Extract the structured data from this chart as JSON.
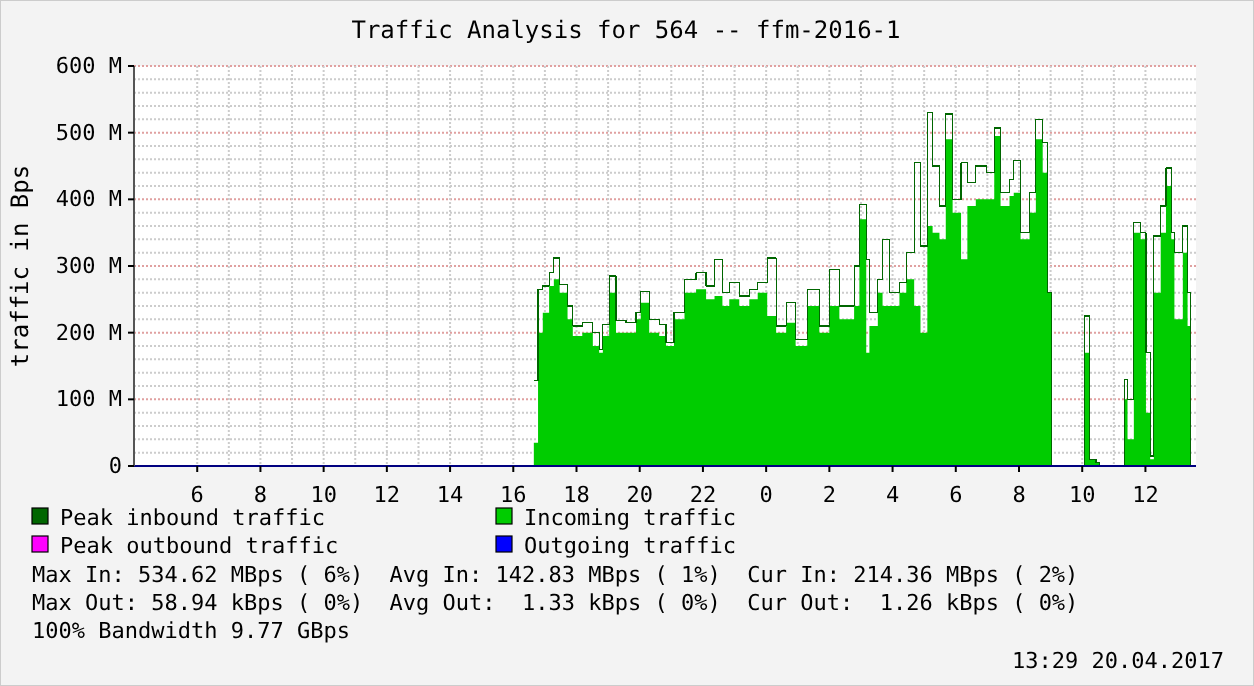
{
  "chart_data": {
    "type": "area",
    "title": "Traffic Analysis for 564 -- ffm-2016-1",
    "ylabel": "traffic in Bps",
    "x": [
      "2017-04-19T16:39",
      "2017-04-19T16:47",
      "2017-04-19T16:56",
      "2017-04-19T17:08",
      "2017-04-19T17:17",
      "2017-04-19T17:28",
      "2017-04-19T17:43",
      "2017-04-19T17:53",
      "2017-04-19T18:11",
      "2017-04-19T18:31",
      "2017-04-19T18:43",
      "2017-04-19T18:50",
      "2017-04-19T19:02",
      "2017-04-19T19:15",
      "2017-04-19T19:34",
      "2017-04-19T19:53",
      "2017-04-19T20:02",
      "2017-04-19T20:18",
      "2017-04-19T20:37",
      "2017-04-19T20:50",
      "2017-04-19T21:05",
      "2017-04-19T21:25",
      "2017-04-19T21:47",
      "2017-04-19T22:06",
      "2017-04-19T22:22",
      "2017-04-19T22:37",
      "2017-04-19T22:50",
      "2017-04-19T23:09",
      "2017-04-19T23:28",
      "2017-04-19T23:44",
      "2017-04-20T00:02",
      "2017-04-20T00:19",
      "2017-04-20T00:38",
      "2017-04-20T00:56",
      "2017-04-20T01:18",
      "2017-04-20T01:41",
      "2017-04-20T02:00",
      "2017-04-20T02:19",
      "2017-04-20T02:32",
      "2017-04-20T02:47",
      "2017-04-20T02:57",
      "2017-04-20T03:10",
      "2017-04-20T03:16",
      "2017-04-20T03:32",
      "2017-04-20T03:41",
      "2017-04-20T03:54",
      "2017-04-20T04:13",
      "2017-04-20T04:26",
      "2017-04-20T04:41",
      "2017-04-20T04:53",
      "2017-04-20T05:06",
      "2017-04-20T05:16",
      "2017-04-20T05:29",
      "2017-04-20T05:41",
      "2017-04-20T05:54",
      "2017-04-20T06:10",
      "2017-04-20T06:22",
      "2017-04-20T06:38",
      "2017-04-20T06:58",
      "2017-04-20T07:13",
      "2017-04-20T07:25",
      "2017-04-20T07:42",
      "2017-04-20T07:50",
      "2017-04-20T08:03",
      "2017-04-20T08:20",
      "2017-04-20T08:32",
      "2017-04-20T08:45",
      "2017-04-20T08:54",
      "2017-04-20T09:01",
      "2017-04-20T10:01",
      "2017-04-20T10:05",
      "2017-04-20T10:14",
      "2017-04-20T10:26",
      "2017-04-20T10:33",
      "2017-04-20T11:21",
      "2017-04-20T11:26",
      "2017-04-20T11:38",
      "2017-04-20T11:51",
      "2017-04-20T12:01",
      "2017-04-20T12:09",
      "2017-04-20T12:16",
      "2017-04-20T12:29",
      "2017-04-20T12:39",
      "2017-04-20T12:49",
      "2017-04-20T12:55",
      "2017-04-20T13:11",
      "2017-04-20T13:20",
      "2017-04-20T13:26"
    ],
    "series": [
      {
        "name": "Peak inbound traffic",
        "type": "step",
        "color": "#006600",
        "values": [
          128,
          265,
          270,
          290,
          312,
          272,
          240,
          210,
          215,
          200,
          175,
          212,
          285,
          218,
          215,
          230,
          262,
          220,
          212,
          185,
          230,
          280,
          290,
          270,
          310,
          260,
          275,
          255,
          265,
          275,
          312,
          210,
          245,
          190,
          265,
          210,
          295,
          240,
          240,
          300,
          392,
          310,
          230,
          280,
          340,
          260,
          275,
          320,
          455,
          330,
          530,
          450,
          390,
          528,
          400,
          455,
          425,
          450,
          440,
          507,
          410,
          430,
          458,
          350,
          410,
          520,
          485,
          260,
          0,
          0,
          225,
          10,
          5,
          0,
          130,
          100,
          365,
          350,
          170,
          15,
          345,
          390,
          447,
          350,
          320,
          360,
          260,
          0
        ]
      },
      {
        "name": "Incoming traffic",
        "color": "#00cc00",
        "values": [
          35,
          200,
          230,
          270,
          280,
          260,
          220,
          195,
          200,
          180,
          170,
          195,
          260,
          200,
          200,
          220,
          245,
          200,
          195,
          180,
          220,
          260,
          265,
          250,
          255,
          240,
          250,
          240,
          250,
          260,
          225,
          200,
          215,
          180,
          240,
          200,
          240,
          220,
          220,
          240,
          370,
          170,
          210,
          260,
          240,
          240,
          260,
          280,
          240,
          200,
          360,
          350,
          340,
          490,
          380,
          310,
          390,
          400,
          400,
          495,
          390,
          405,
          410,
          340,
          380,
          490,
          440,
          260,
          0,
          0,
          170,
          10,
          5,
          0,
          100,
          40,
          350,
          340,
          80,
          10,
          260,
          350,
          420,
          340,
          220,
          320,
          210,
          0
        ]
      },
      {
        "name": "Peak outbound traffic",
        "type": "step",
        "color": "#ff00ff",
        "values": [
          null,
          null,
          null,
          null,
          null,
          null,
          null,
          null,
          null,
          null,
          null,
          null,
          null,
          null,
          null,
          null,
          null,
          null,
          null,
          null,
          null,
          null,
          null,
          null,
          null,
          null,
          null,
          null,
          null,
          null,
          null,
          null,
          null,
          null,
          null,
          null,
          null,
          null,
          null,
          null,
          null,
          null,
          null,
          null,
          null,
          null,
          null,
          null,
          null,
          null,
          null,
          null,
          null,
          null,
          null,
          null,
          null,
          null,
          null,
          null,
          null,
          null,
          null,
          null,
          null,
          null,
          null,
          null,
          null,
          null,
          null,
          null,
          null,
          null,
          null,
          null,
          null,
          null,
          null,
          null,
          null,
          null,
          null,
          null,
          null,
          null,
          null,
          null
        ]
      },
      {
        "name": "Outgoing traffic",
        "type": "step",
        "color": "#0000ff",
        "values": [
          null,
          null,
          null,
          null,
          null,
          null,
          null,
          null,
          null,
          null,
          null,
          null,
          null,
          null,
          null,
          null,
          null,
          null,
          null,
          null,
          null,
          null,
          null,
          null,
          null,
          null,
          null,
          null,
          null,
          null,
          null,
          null,
          null,
          null,
          null,
          null,
          null,
          null,
          null,
          null,
          null,
          null,
          null,
          null,
          null,
          null,
          null,
          null,
          null,
          null,
          null,
          null,
          null,
          null,
          null,
          null,
          null,
          null,
          null,
          null,
          null,
          null,
          null,
          null,
          null,
          null,
          null,
          null,
          null,
          null,
          null,
          null,
          null,
          null,
          null,
          null,
          null,
          null,
          null,
          null,
          null,
          null,
          null,
          null,
          null,
          null,
          null,
          null
        ]
      }
    ],
    "xlim": [
      "2017-04-19T04:00",
      "2017-04-20T13:36"
    ],
    "xticks": [
      {
        "value": "2017-04-19T06:00",
        "label": "6"
      },
      {
        "value": "2017-04-19T08:00",
        "label": "8"
      },
      {
        "value": "2017-04-19T10:00",
        "label": "10"
      },
      {
        "value": "2017-04-19T12:00",
        "label": "12"
      },
      {
        "value": "2017-04-19T14:00",
        "label": "14"
      },
      {
        "value": "2017-04-19T16:00",
        "label": "16"
      },
      {
        "value": "2017-04-19T18:00",
        "label": "18"
      },
      {
        "value": "2017-04-19T20:00",
        "label": "20"
      },
      {
        "value": "2017-04-19T22:00",
        "label": "22"
      },
      {
        "value": "2017-04-20T00:00",
        "label": "0"
      },
      {
        "value": "2017-04-20T02:00",
        "label": "2"
      },
      {
        "value": "2017-04-20T04:00",
        "label": "4"
      },
      {
        "value": "2017-04-20T06:00",
        "label": "6"
      },
      {
        "value": "2017-04-20T08:00",
        "label": "8"
      },
      {
        "value": "2017-04-20T10:00",
        "label": "10"
      },
      {
        "value": "2017-04-20T12:00",
        "label": "12"
      }
    ],
    "ylim": [
      0,
      600
    ],
    "yticks": [
      0,
      {
        "value": 100,
        "label": "100 M"
      },
      {
        "value": 200,
        "label": "200 M"
      },
      {
        "value": 300,
        "label": "300 M"
      },
      {
        "value": 400,
        "label": "400 M"
      },
      {
        "value": 500,
        "label": "500 M"
      },
      {
        "value": 600,
        "label": "600 M"
      }
    ],
    "grid": true,
    "legend": "bottom",
    "annotations": [
      "Max In: 534.62 MBps ( 6%)  Avg In: 142.83 MBps ( 1%)  Cur In: 214.36 MBps ( 2%)",
      "Max Out: 58.94 kBps ( 0%)  Avg Out:  1.33 kBps ( 0%)  Cur Out:  1.26 kBps ( 0%)",
      "100% Bandwidth 9.77 GBps",
      "13:29 20.04.2017"
    ]
  }
}
